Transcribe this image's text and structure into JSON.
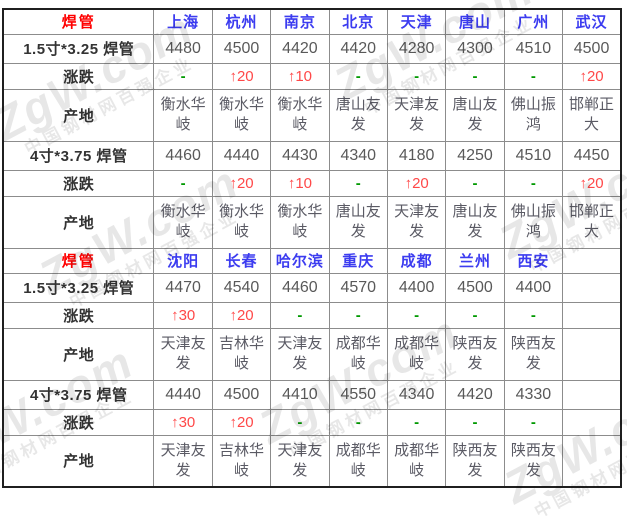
{
  "watermark": {
    "brand": "ZgW.com",
    "tagline": "中国钢材网百强企业"
  },
  "colors": {
    "section_label_red": "#ff0000",
    "city_blue": "#3c3cf0",
    "change_up_red": "#ff4848",
    "change_none_green": "#009900",
    "price_gray": "#595959",
    "origin_gray": "#5a5a64",
    "row_label_dark": "#333333",
    "inner_border_gray": "#8c8c8c",
    "outer_border_dark": "#1f1f1f"
  },
  "chart_data": {
    "type": "table",
    "sections": [
      {
        "header_label": "焊管",
        "cities": [
          "上海",
          "杭州",
          "南京",
          "北京",
          "天津",
          "唐山",
          "广州",
          "武汉"
        ],
        "rows": [
          {
            "label": "1.5寸*3.25 焊管",
            "type": "price",
            "values": [
              "4480",
              "4500",
              "4420",
              "4420",
              "4280",
              "4300",
              "4510",
              "4500"
            ]
          },
          {
            "label": "涨跌",
            "type": "change",
            "values": [
              "-",
              "↑20",
              "↑10",
              "-",
              "-",
              "-",
              "-",
              "↑20"
            ]
          },
          {
            "label": "产地",
            "type": "origin",
            "values": [
              "衡水华岐",
              "衡水华岐",
              "衡水华岐",
              "唐山友发",
              "天津友发",
              "唐山友发",
              "佛山振鸿",
              "邯郸正大"
            ]
          },
          {
            "label": "4寸*3.75 焊管",
            "type": "price",
            "values": [
              "4460",
              "4440",
              "4430",
              "4340",
              "4180",
              "4250",
              "4510",
              "4450"
            ]
          },
          {
            "label": "涨跌",
            "type": "change",
            "values": [
              "-",
              "↑20",
              "↑10",
              "-",
              "↑20",
              "-",
              "-",
              "↑20"
            ]
          },
          {
            "label": "产地",
            "type": "origin",
            "values": [
              "衡水华岐",
              "衡水华岐",
              "衡水华岐",
              "唐山友发",
              "天津友发",
              "唐山友发",
              "佛山振鸿",
              "邯郸正大"
            ]
          }
        ]
      },
      {
        "header_label": "焊管",
        "cities": [
          "沈阳",
          "长春",
          "哈尔滨",
          "重庆",
          "成都",
          "兰州",
          "西安",
          ""
        ],
        "rows": [
          {
            "label": "1.5寸*3.25 焊管",
            "type": "price",
            "values": [
              "4470",
              "4540",
              "4460",
              "4570",
              "4400",
              "4500",
              "4400",
              ""
            ]
          },
          {
            "label": "涨跌",
            "type": "change",
            "values": [
              "↑30",
              "↑20",
              "-",
              "-",
              "-",
              "-",
              "-",
              ""
            ]
          },
          {
            "label": "产地",
            "type": "origin",
            "values": [
              "天津友发",
              "吉林华岐",
              "天津友发",
              "成都华岐",
              "成都华岐",
              "陕西友发",
              "陕西友发",
              ""
            ]
          },
          {
            "label": "4寸*3.75 焊管",
            "type": "price",
            "values": [
              "4440",
              "4500",
              "4410",
              "4550",
              "4340",
              "4420",
              "4330",
              ""
            ]
          },
          {
            "label": "涨跌",
            "type": "change",
            "values": [
              "↑30",
              "↑20",
              "-",
              "-",
              "-",
              "-",
              "-",
              ""
            ]
          },
          {
            "label": "产地",
            "type": "origin",
            "values": [
              "天津友发",
              "吉林华岐",
              "天津友发",
              "成都华岐",
              "成都华岐",
              "陕西友发",
              "陕西友发",
              ""
            ]
          }
        ]
      }
    ]
  }
}
